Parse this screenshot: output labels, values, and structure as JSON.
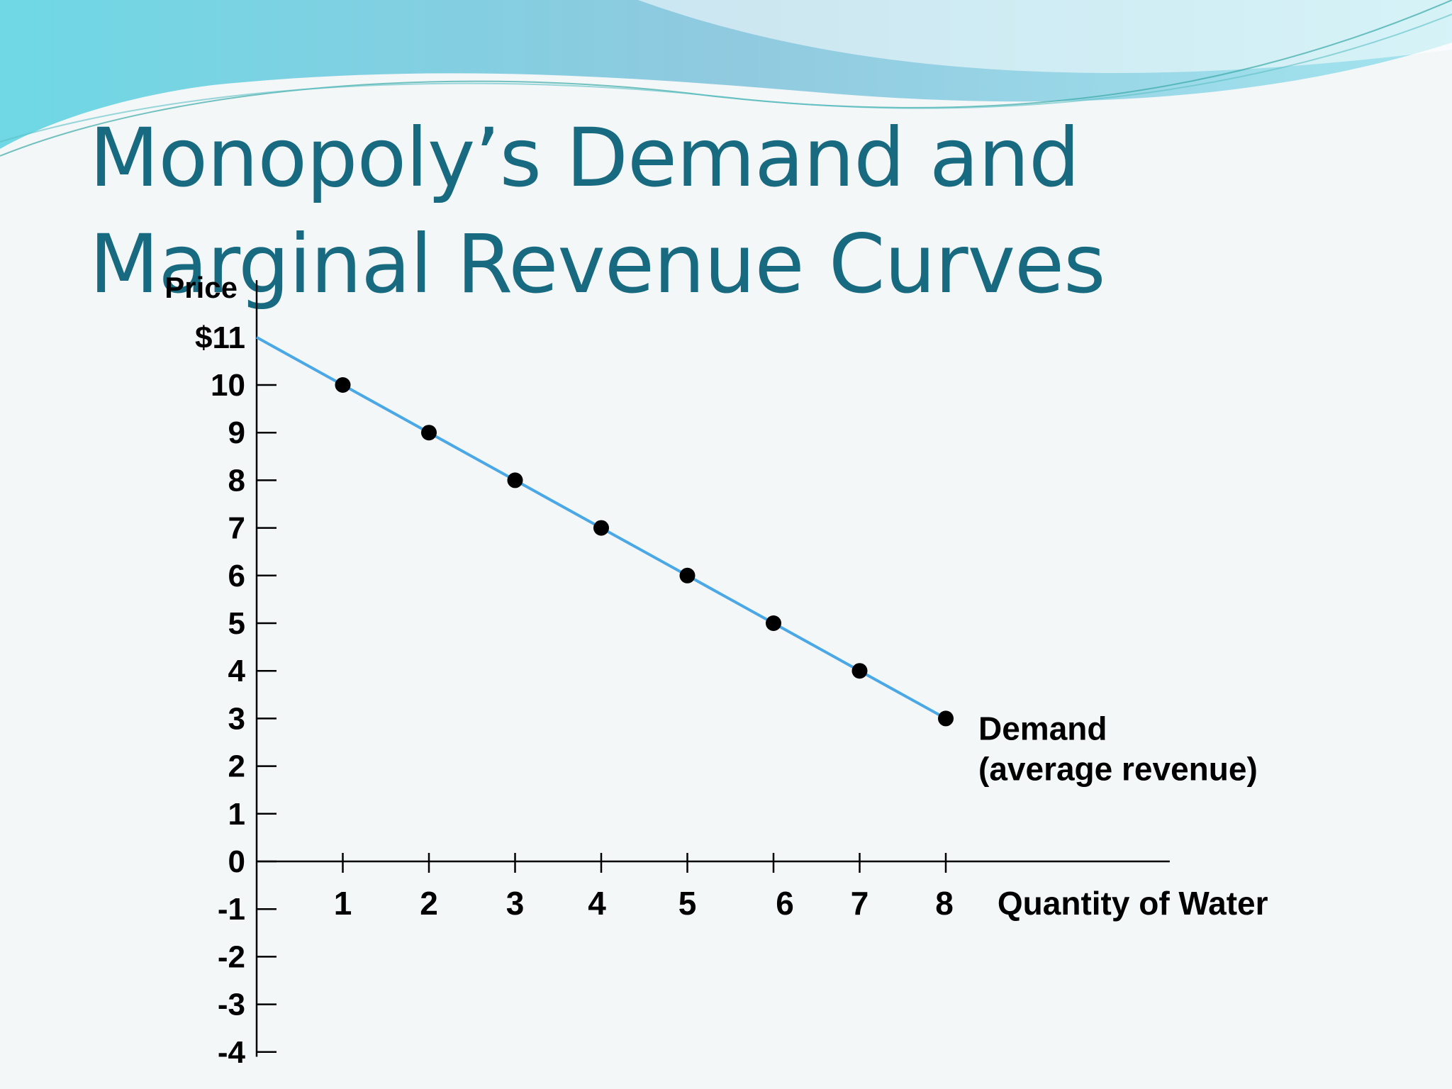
{
  "slide": {
    "title": "Monopoly’s Demand and Marginal Revenue Curves",
    "colors": {
      "title": "#186a80",
      "demand_line": "#4aa8e6",
      "wave": "#7fd3e8"
    }
  },
  "chart_data": {
    "type": "line",
    "ylabel": "Price",
    "xlabel": "Quantity of Water",
    "x_ticks": [
      "1",
      "2",
      "3",
      "4",
      "5",
      "6",
      "7",
      "8"
    ],
    "y_ticks": [
      "-4",
      "-3",
      "-2",
      "-1",
      "0",
      "1",
      "2",
      "3",
      "4",
      "5",
      "6",
      "7",
      "8",
      "9",
      "10",
      "$11"
    ],
    "xlim": [
      0,
      10.6
    ],
    "ylim": [
      -4,
      11
    ],
    "series": [
      {
        "name": "Demand (average revenue)",
        "label_lines": [
          "Demand",
          "(average revenue)"
        ],
        "x": [
          0,
          1,
          2,
          3,
          4,
          5,
          6,
          7,
          8
        ],
        "y": [
          11,
          10,
          9,
          8,
          7,
          6,
          5,
          4,
          3
        ],
        "marker_from_index": 1
      }
    ],
    "grid": false,
    "legend": "none"
  }
}
